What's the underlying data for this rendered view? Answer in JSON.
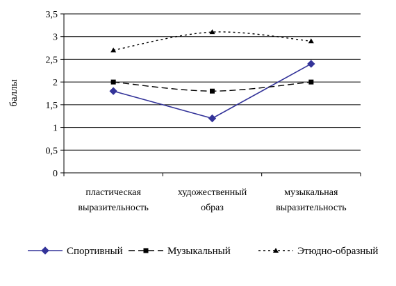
{
  "chart_data": {
    "type": "line",
    "title": "",
    "xlabel": "",
    "ylabel": "баллы",
    "ylim": [
      0,
      3.5
    ],
    "yticks": [
      0,
      0.5,
      1,
      1.5,
      2,
      2.5,
      3,
      3.5
    ],
    "ytick_labels": [
      "0",
      "0,5",
      "1",
      "1,5",
      "2",
      "2,5",
      "3",
      "3,5"
    ],
    "grid": "horizontal",
    "legend_position": "bottom",
    "categories": [
      [
        "пластическая",
        "выразительность"
      ],
      [
        "художественный",
        "образ"
      ],
      [
        "музыкальная",
        "выразительность"
      ]
    ],
    "series": [
      {
        "name": "Спортивный",
        "values": [
          1.8,
          1.2,
          2.4
        ],
        "color": "#333399",
        "line_style": "solid",
        "marker": "diamond",
        "smooth": false
      },
      {
        "name": "Музыкальный",
        "values": [
          2.0,
          1.8,
          2.0
        ],
        "color": "#000000",
        "line_style": "dashed",
        "marker": "square",
        "smooth": true
      },
      {
        "name": "Этюдно-образный",
        "values": [
          2.7,
          3.1,
          2.9
        ],
        "color": "#000000",
        "line_style": "dotted",
        "marker": "triangle",
        "smooth": true
      }
    ]
  }
}
